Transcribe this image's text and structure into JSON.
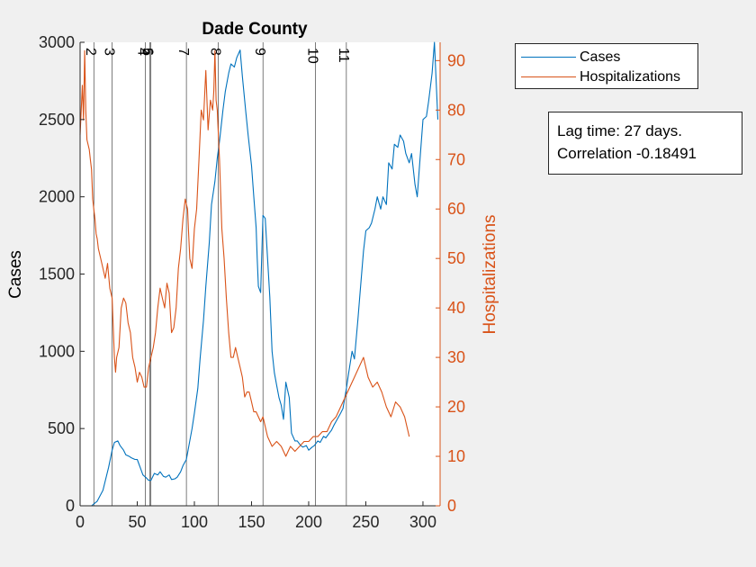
{
  "chart_data": {
    "type": "line",
    "title": "Dade County",
    "ylabel_left": "Cases",
    "ylabel_right": "Hospitalizations",
    "xlim": [
      0,
      315
    ],
    "ylim_left": [
      0,
      3000
    ],
    "ylim_right": [
      0,
      93.7
    ],
    "xticks": [
      0,
      50,
      100,
      150,
      200,
      250,
      300
    ],
    "yticks_left": [
      0,
      500,
      1000,
      1500,
      2000,
      2500,
      3000
    ],
    "yticks_right": [
      0,
      10,
      20,
      30,
      40,
      50,
      60,
      70,
      80,
      90
    ],
    "grid": false,
    "legend_position": "top-right, outside axes",
    "series": [
      {
        "name": "Cases",
        "color": "#0072BD",
        "axis": "left",
        "x": [
          0,
          10,
          15,
          20,
          25,
          28,
          30,
          33,
          35,
          38,
          40,
          43,
          45,
          48,
          50,
          53,
          55,
          58,
          60,
          62,
          65,
          68,
          70,
          73,
          75,
          78,
          80,
          83,
          85,
          88,
          90,
          93,
          95,
          98,
          100,
          103,
          105,
          108,
          110,
          113,
          115,
          118,
          120,
          122,
          125,
          127,
          130,
          132,
          135,
          137,
          140,
          142,
          145,
          147,
          150,
          152,
          154,
          155,
          156,
          158,
          160,
          162,
          164,
          166,
          168,
          170,
          172,
          174,
          176,
          178,
          180,
          183,
          185,
          188,
          190,
          193,
          195,
          198,
          200,
          203,
          205,
          208,
          210,
          213,
          215,
          218,
          220,
          222,
          225,
          228,
          230,
          233,
          235,
          238,
          240,
          243,
          245,
          248,
          250,
          253,
          255,
          258,
          260,
          263,
          265,
          268,
          270,
          273,
          275,
          278,
          280,
          283,
          285,
          288,
          290,
          293,
          295,
          298,
          300,
          303,
          305,
          308,
          310,
          313
        ],
        "y": [
          0,
          0,
          30,
          100,
          250,
          360,
          410,
          420,
          390,
          360,
          330,
          320,
          310,
          300,
          300,
          240,
          200,
          180,
          165,
          165,
          210,
          200,
          220,
          190,
          185,
          200,
          170,
          175,
          185,
          220,
          260,
          300,
          380,
          500,
          600,
          760,
          950,
          1200,
          1420,
          1700,
          1950,
          2100,
          2250,
          2360,
          2560,
          2680,
          2800,
          2860,
          2840,
          2900,
          2950,
          2780,
          2550,
          2400,
          2200,
          2000,
          1800,
          1600,
          1420,
          1380,
          1880,
          1860,
          1600,
          1350,
          1000,
          860,
          780,
          700,
          650,
          560,
          800,
          700,
          470,
          420,
          420,
          390,
          380,
          390,
          360,
          380,
          390,
          420,
          410,
          450,
          440,
          470,
          490,
          520,
          560,
          600,
          630,
          760,
          860,
          1000,
          950,
          1200,
          1380,
          1650,
          1780,
          1800,
          1830,
          1920,
          2000,
          1920,
          2000,
          1950,
          2220,
          2180,
          2340,
          2320,
          2400,
          2360,
          2280,
          2220,
          2280,
          2080,
          2000,
          2300,
          2500,
          2520,
          2620,
          2800,
          3000,
          2500
        ]
      },
      {
        "name": "Hospitalizations",
        "color": "#D95319",
        "axis": "right",
        "x": [
          0,
          2,
          3,
          4,
          5,
          6,
          8,
          9,
          10,
          11,
          12,
          13,
          14,
          15,
          16,
          18,
          20,
          22,
          24,
          26,
          28,
          30,
          31,
          32,
          34,
          36,
          38,
          40,
          42,
          44,
          46,
          48,
          50,
          52,
          54,
          56,
          58,
          60,
          62,
          64,
          66,
          68,
          70,
          72,
          74,
          76,
          78,
          80,
          82,
          84,
          86,
          88,
          90,
          92,
          94,
          95,
          96,
          98,
          100,
          102,
          104,
          106,
          108,
          110,
          112,
          114,
          116,
          117,
          118,
          119,
          120,
          122,
          124,
          126,
          128,
          130,
          132,
          134,
          136,
          138,
          140,
          142,
          144,
          146,
          148,
          150,
          152,
          154,
          156,
          158,
          160,
          164,
          168,
          172,
          176,
          180,
          184,
          188,
          192,
          196,
          200,
          204,
          208,
          212,
          216,
          220,
          224,
          228,
          232,
          236,
          240,
          244,
          248,
          252,
          256,
          260,
          264,
          268,
          272,
          276,
          280,
          284,
          288
        ],
        "y": [
          75,
          85,
          78,
          92,
          80,
          74,
          72,
          70,
          68,
          62,
          60,
          58,
          55,
          54,
          52,
          50,
          48,
          46,
          49,
          44,
          42,
          30,
          27,
          30,
          32,
          40,
          42,
          41,
          37,
          35,
          30,
          28,
          25,
          27,
          26,
          24,
          24,
          28,
          30,
          32,
          35,
          40,
          44,
          42,
          40,
          45,
          43,
          35,
          36,
          40,
          48,
          52,
          58,
          62,
          60,
          55,
          50,
          48,
          56,
          60,
          70,
          80,
          78,
          88,
          76,
          82,
          80,
          84,
          92,
          82,
          80,
          70,
          56,
          50,
          42,
          35,
          30,
          30,
          32,
          30,
          28,
          26,
          22,
          23,
          23,
          21,
          19,
          19,
          18,
          17,
          18,
          14,
          12,
          13,
          12,
          10,
          12,
          11,
          12,
          13,
          13,
          14,
          14,
          15,
          15,
          17,
          18,
          20,
          22,
          24,
          26,
          28,
          30,
          26,
          24,
          25,
          23,
          20,
          18,
          21,
          20,
          18,
          14
        ]
      }
    ],
    "event_lines": [
      {
        "x": 12,
        "label": "2"
      },
      {
        "x": 28,
        "label": "3"
      },
      {
        "x": 57,
        "label": "4"
      },
      {
        "x": 61,
        "label": "5"
      },
      {
        "x": 62,
        "label": "6"
      },
      {
        "x": 93,
        "label": "7"
      },
      {
        "x": 121,
        "label": "8"
      },
      {
        "x": 160,
        "label": "9"
      },
      {
        "x": 206,
        "label": "10"
      },
      {
        "x": 233,
        "label": "11"
      }
    ]
  },
  "annotation": {
    "line1": "Lag time: 27 days.",
    "line2": "Correlation -0.18491"
  }
}
